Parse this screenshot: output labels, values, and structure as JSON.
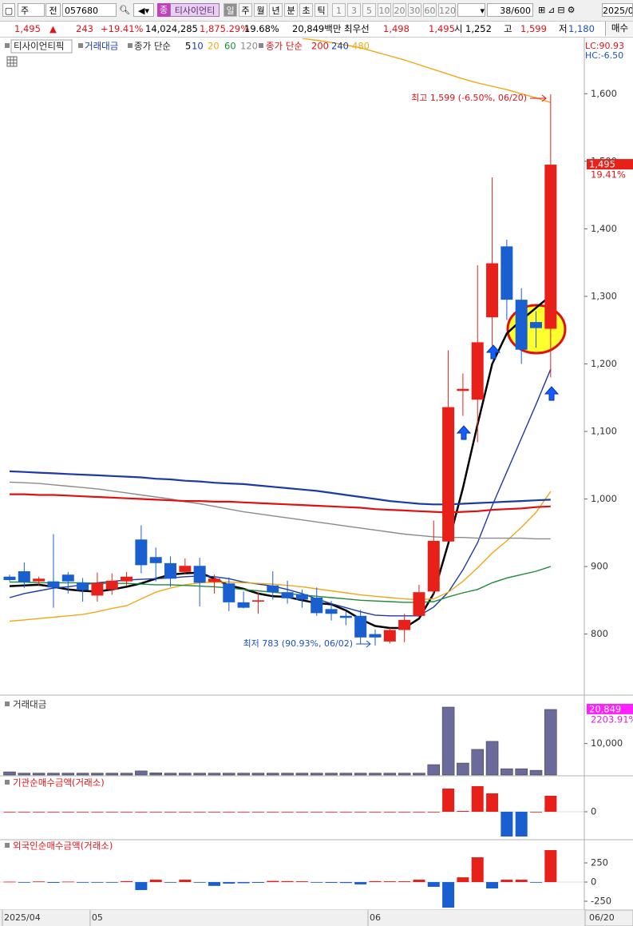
{
  "toolbar": {
    "market": "주",
    "prev": "전",
    "code": "057680",
    "badge": "종",
    "name": "티사이언티",
    "periods": [
      "일",
      "주",
      "월",
      "년",
      "분",
      "초",
      "틱"
    ],
    "intervals": [
      "1",
      "3",
      "5",
      "10",
      "20",
      "30",
      "60",
      "120"
    ],
    "count": "38/600",
    "date": "2025/0"
  },
  "quote": {
    "price": "1,495",
    "arrow": "▲",
    "change": "243",
    "rate": "+19.41%",
    "volume": "14,024,285",
    "volume_rate": "1,875.29%",
    "turnover": "19.68%",
    "amount": "20,849백만",
    "best_label": "최우선",
    "best_ask": "1,498",
    "best_bid": "1,495",
    "open_label": "시",
    "open": "1,252",
    "high_label": "고",
    "high": "1,599",
    "low_label": "저",
    "low": "1,180",
    "button": "매수"
  },
  "chart_data": [
    {
      "type": "candlestick",
      "legend_title": "티사이언티픽",
      "legend_volume": "거래대금",
      "categories": [
        "2025/04",
        null,
        null,
        null,
        null,
        null,
        "05",
        null,
        null,
        null,
        null,
        null,
        null,
        null,
        null,
        null,
        null,
        null,
        null,
        null,
        null,
        null,
        null,
        null,
        null,
        "06",
        null,
        null,
        null,
        null,
        null,
        null,
        null,
        null,
        null,
        null,
        null,
        "06/20"
      ],
      "open": [
        885,
        893,
        878,
        878,
        888,
        876,
        857,
        866,
        878,
        940,
        914,
        905,
        892,
        901,
        877,
        875,
        847,
        848,
        872,
        862,
        859,
        854,
        837,
        827,
        827,
        800,
        789,
        806,
        827,
        863,
        937,
        1160,
        1147,
        1269,
        1374,
        1295,
        1262,
        1252
      ],
      "high": [
        888,
        906,
        885,
        948,
        892,
        883,
        891,
        890,
        892,
        961,
        928,
        915,
        912,
        913,
        888,
        884,
        863,
        862,
        893,
        879,
        866,
        869,
        849,
        833,
        836,
        807,
        809,
        830,
        873,
        968,
        1220,
        1186,
        1346,
        1476,
        1384,
        1312,
        1278,
        1599
      ],
      "low": [
        878,
        868,
        872,
        839,
        860,
        848,
        848,
        858,
        872,
        890,
        878,
        870,
        889,
        841,
        860,
        834,
        838,
        830,
        851,
        845,
        839,
        827,
        820,
        813,
        786,
        783,
        786,
        788,
        825,
        859,
        937,
        1123,
        1084,
        1227,
        1265,
        1200,
        1224,
        1180
      ],
      "close": [
        880,
        877,
        882,
        869,
        878,
        865,
        876,
        879,
        885,
        902,
        905,
        882,
        901,
        876,
        882,
        847,
        839,
        850,
        862,
        853,
        851,
        831,
        830,
        824,
        795,
        795,
        806,
        821,
        862,
        938,
        1136,
        1163,
        1232,
        1349,
        1295,
        1221,
        1253,
        1495
      ],
      "up_color": "#e8201a",
      "down_color": "#1a5fd0",
      "ylim": [
        712,
        1682
      ],
      "yticks": [
        800,
        900,
        {
          "value": 1000,
          "label": "1,000"
        },
        {
          "value": 1100,
          "label": "1,100"
        },
        {
          "value": 1200,
          "label": "1,200"
        },
        {
          "value": 1300,
          "label": "1,300"
        },
        {
          "value": 1400,
          "label": "1,400"
        },
        {
          "value": 1500,
          "label": "1,500"
        },
        {
          "value": 1600,
          "label": "1,600"
        }
      ],
      "ma_groups": [
        {
          "label": "종가 단순",
          "series": [
            {
              "name": "5",
              "color": "#000000",
              "values": [
                871,
                872,
                873,
                870,
                866,
                864,
                863,
                866,
                870,
                875,
                882,
                888,
                890,
                891,
                882,
                872,
                867,
                860,
                856,
                855,
                850,
                846,
                844,
                835,
                822,
                812,
                809,
                809,
                823,
                860,
                934,
                1016,
                1110,
                1200,
                1245,
                1265,
                1283,
                1301
              ]
            },
            {
              "name": "10",
              "color": "#1a3aa8",
              "values": [
                854,
                860,
                864,
                868,
                870,
                873,
                876,
                878,
                880,
                881,
                882,
                883,
                885,
                886,
                885,
                882,
                877,
                874,
                871,
                866,
                860,
                852,
                845,
                839,
                833,
                828,
                827,
                827,
                827,
                840,
                862,
                895,
                935,
                990,
                1040,
                1090,
                1140,
                1192
              ]
            },
            {
              "name": "20",
              "color": "#f0a818",
              "values": [
                819,
                821,
                823,
                825,
                827,
                829,
                833,
                838,
                842,
                852,
                862,
                868,
                873,
                876,
                877,
                877,
                876,
                875,
                874,
                872,
                870,
                867,
                864,
                861,
                858,
                856,
                854,
                852,
                851,
                852,
                862,
                878,
                898,
                920,
                938,
                958,
                980,
                1011
              ]
            },
            {
              "name": "60",
              "color": "#1e8a3c",
              "values": [
                877,
                877,
                876,
                876,
                876,
                876,
                875,
                875,
                875,
                874,
                873,
                873,
                872,
                871,
                870,
                868,
                866,
                864,
                862,
                860,
                858,
                856,
                854,
                852,
                850,
                849,
                848,
                847,
                847,
                848,
                855,
                861,
                866,
                876,
                883,
                888,
                893,
                900
              ]
            },
            {
              "name": "120",
              "color": "#8a8a8a",
              "values": [
                1025,
                1024,
                1023,
                1021,
                1019,
                1017,
                1015,
                1012,
                1009,
                1006,
                1003,
                1000,
                996,
                993,
                989,
                985,
                981,
                978,
                975,
                972,
                969,
                966,
                963,
                960,
                957,
                954,
                951,
                948,
                946,
                944,
                943,
                943,
                942,
                942,
                942,
                942,
                941,
                941
              ]
            }
          ]
        },
        {
          "label": "종가 단순",
          "series": [
            {
              "name": "200",
              "color": "#e01010",
              "values": [
                1007,
                1007,
                1006,
                1006,
                1005,
                1004,
                1003,
                1002,
                1001,
                1000,
                999,
                998,
                997,
                997,
                996,
                996,
                995,
                994,
                993,
                992,
                991,
                990,
                989,
                988,
                987,
                985,
                984,
                983,
                982,
                981,
                980,
                981,
                982,
                984,
                985,
                986,
                988,
                989
              ]
            },
            {
              "name": "240",
              "color": "#1a3aa8",
              "values": [
                1041,
                1040,
                1039,
                1038,
                1037,
                1036,
                1035,
                1034,
                1033,
                1032,
                1030,
                1029,
                1027,
                1026,
                1024,
                1023,
                1022,
                1020,
                1018,
                1016,
                1014,
                1012,
                1009,
                1006,
                1003,
                1000,
                997,
                995,
                993,
                992,
                992,
                993,
                994,
                995,
                996,
                997,
                998,
                999
              ]
            },
            {
              "name": "480",
              "color": "#f0a818",
              "values": [
                null,
                null,
                null,
                null,
                null,
                null,
                null,
                null,
                null,
                null,
                null,
                null,
                null,
                null,
                null,
                null,
                null,
                null,
                null,
                null,
                1682,
                1679,
                1676,
                1672,
                1668,
                1662,
                1656,
                1650,
                1643,
                1636,
                1629,
                1622,
                1616,
                1611,
                1606,
                1600,
                1594,
                1587
              ]
            }
          ]
        }
      ],
      "lc": "LC:90.93",
      "hc": "HC:-6.50",
      "high_note": "최고 1,599 (-6.50%, 06/20)",
      "low_note": "최저 783 (90.93%, 06/02)",
      "last_label": "1,495",
      "last_rate": "19.41%"
    },
    {
      "type": "bar",
      "title": "거래대금",
      "color": "#6b6b9b",
      "values": [
        1000,
        600,
        600,
        600,
        600,
        600,
        600,
        600,
        600,
        1300,
        700,
        600,
        600,
        600,
        600,
        600,
        600,
        600,
        600,
        600,
        600,
        600,
        600,
        600,
        600,
        600,
        600,
        600,
        600,
        3300,
        21600,
        3800,
        8150,
        10700,
        2000,
        2000,
        1500,
        20849
      ],
      "value_labels": [
        null,
        null,
        null,
        null,
        null,
        null,
        null,
        null,
        null,
        null,
        null,
        null,
        null,
        null,
        null,
        null,
        null,
        null,
        null,
        null,
        null,
        null,
        null,
        null,
        null,
        null,
        null,
        null,
        null,
        null,
        null,
        null,
        null,
        null,
        null,
        null,
        null,
        "20,849"
      ],
      "rate_label": "2203.91%",
      "ylim": [
        0,
        24900
      ],
      "yticks": [
        {
          "value": 10000,
          "label": "10,000"
        }
      ]
    },
    {
      "type": "bar",
      "title": "기관순매수금액(거래소)",
      "up_color": "#e8201a",
      "down_color": "#1a5fd0",
      "values": [
        0,
        0,
        0,
        0,
        0,
        0,
        0,
        0,
        0,
        0,
        0,
        0,
        0,
        0,
        0,
        0,
        0,
        0,
        0,
        0,
        0,
        0,
        0,
        0,
        0,
        0,
        0,
        0,
        0,
        0,
        29,
        1,
        32,
        23,
        -31,
        -31,
        0,
        20
      ],
      "ylim": [
        -34,
        44
      ],
      "yticks": [
        0
      ]
    },
    {
      "type": "bar",
      "title": "외국인순매수금액(거래소)",
      "up_color": "#e8201a",
      "down_color": "#1a5fd0",
      "values": [
        5,
        -8,
        8,
        -10,
        6,
        -6,
        -5,
        -4,
        12,
        -104,
        31,
        -6,
        31,
        -8,
        -50,
        -20,
        -15,
        -10,
        15,
        12,
        10,
        -8,
        -10,
        -12,
        -30,
        12,
        10,
        10,
        31,
        -62,
        -333,
        62,
        323,
        -83,
        31,
        31,
        -8,
        417
      ],
      "ylim": [
        -354,
        542
      ],
      "yticks": [
        250,
        0,
        -250
      ]
    }
  ]
}
